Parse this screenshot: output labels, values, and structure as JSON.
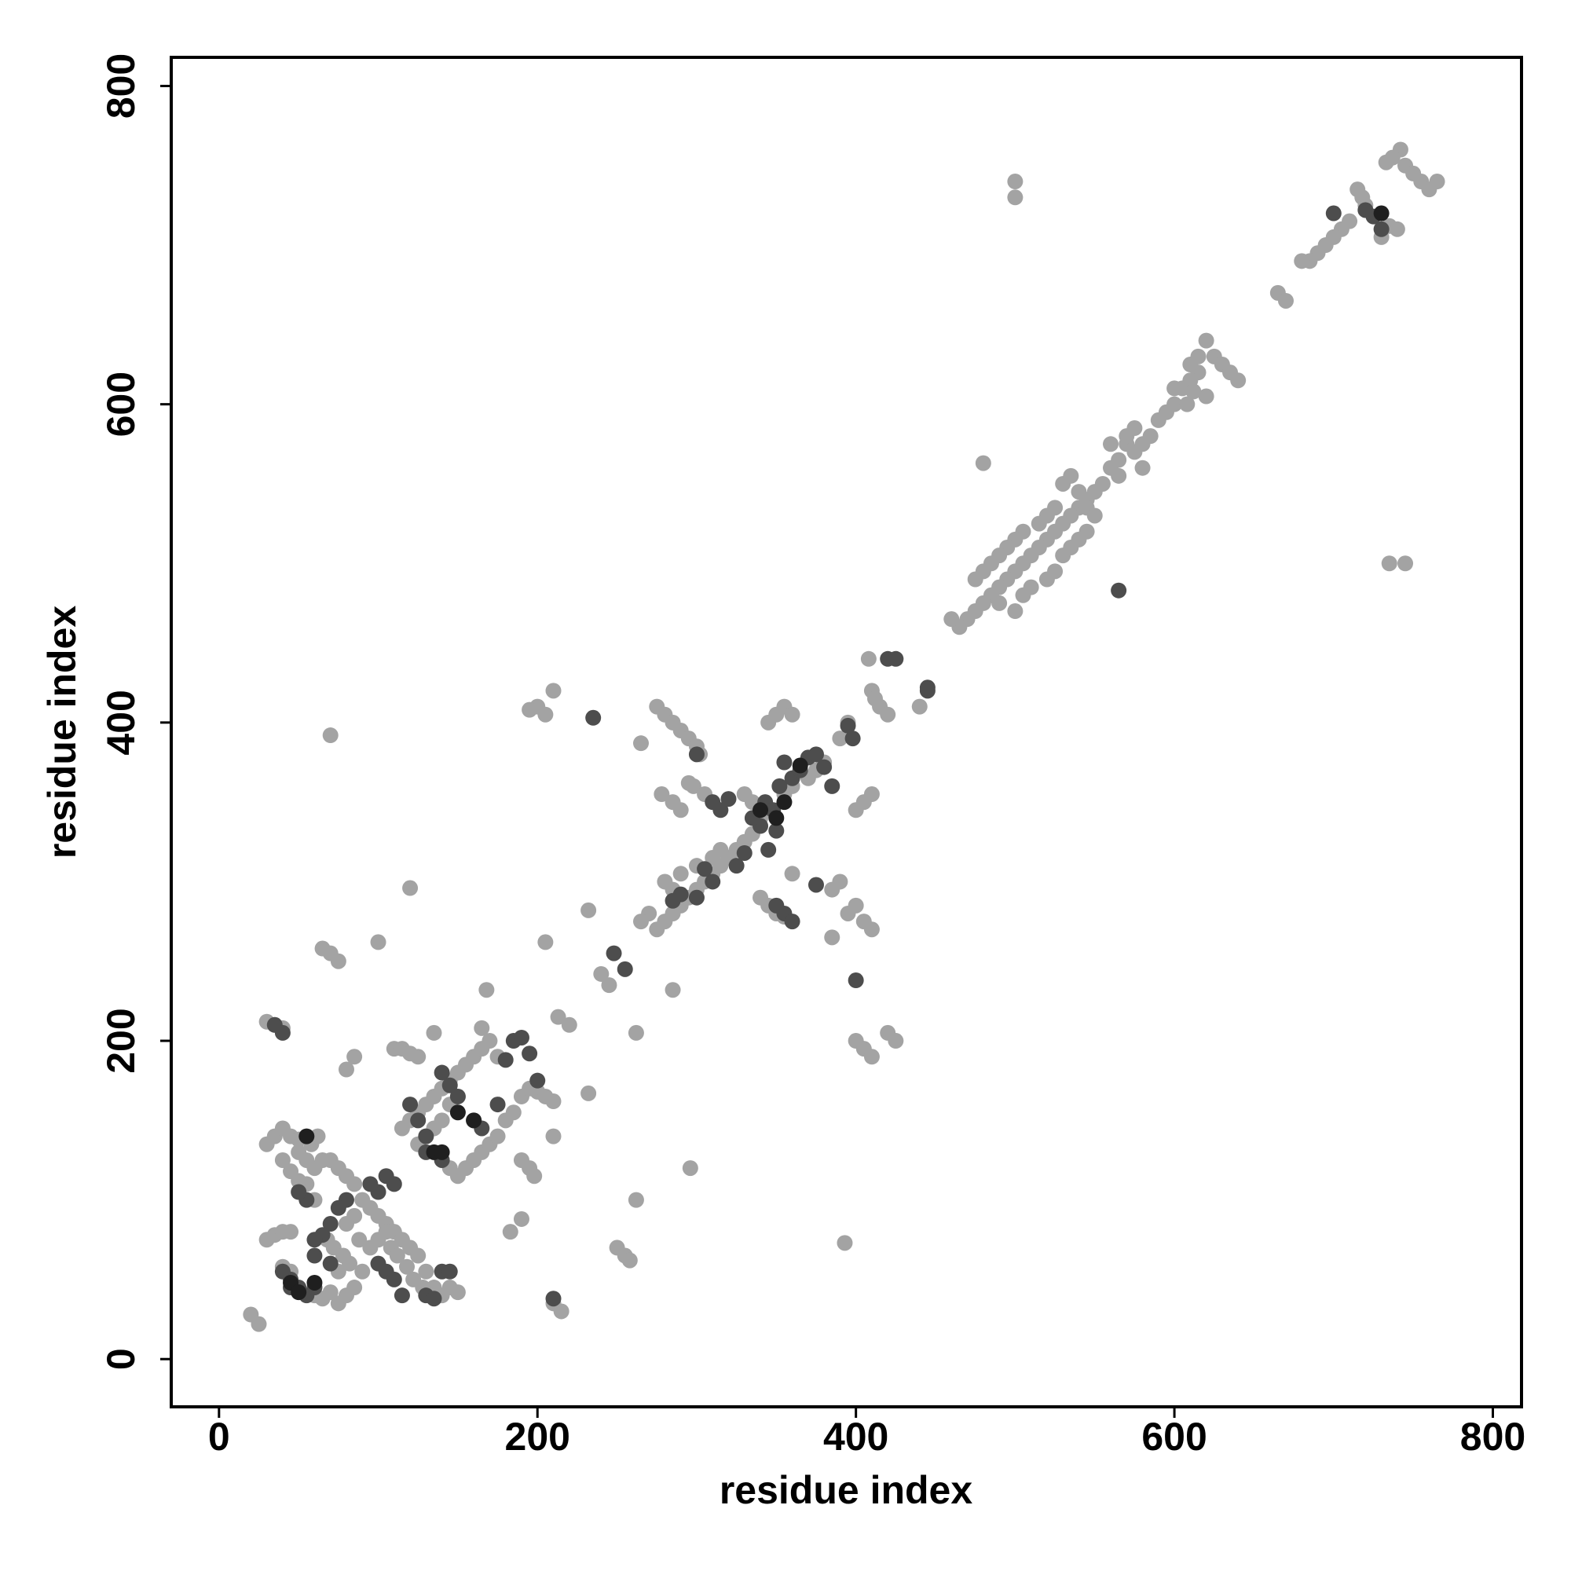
{
  "chart_data": {
    "type": "scatter",
    "xlabel": "residue index",
    "ylabel": "residue index",
    "xlim": [
      -30,
      818
    ],
    "ylim": [
      -30,
      818
    ],
    "xticks": [
      0,
      200,
      400,
      600,
      800
    ],
    "yticks": [
      0,
      200,
      400,
      600,
      800
    ],
    "grid": false,
    "series": [
      {
        "color": "#a3a3a3",
        "x": [
          742,
          737,
          733,
          745,
          750,
          755,
          760,
          765,
          740,
          735,
          730,
          720,
          718,
          715,
          710,
          705,
          700,
          695,
          690,
          685,
          680,
          665,
          670,
          500,
          500
        ],
        "values": [
          760,
          755,
          752,
          750,
          745,
          740,
          735,
          740,
          710,
          712,
          705,
          725,
          730,
          735,
          715,
          710,
          705,
          700,
          695,
          690,
          690,
          670,
          665,
          740,
          730
        ]
      },
      {
        "color": "#a3a3a3",
        "x": [
          620,
          625,
          630,
          635,
          640,
          615,
          610,
          605,
          600,
          595,
          590,
          585,
          580,
          575,
          570,
          565,
          560,
          555,
          550,
          545,
          540,
          535,
          530,
          525,
          520,
          515,
          510,
          505,
          500,
          495,
          490,
          485,
          480,
          475,
          470,
          465,
          460,
          610,
          615,
          600,
          608,
          620,
          612,
          570,
          575,
          580,
          565,
          560,
          530,
          535,
          540,
          545,
          550,
          520,
          525,
          515,
          505,
          500,
          495,
          490,
          485,
          480,
          475,
          505,
          510,
          500,
          490,
          520,
          525,
          530,
          535,
          540,
          545,
          480,
          735,
          745
        ],
        "values": [
          640,
          630,
          625,
          620,
          615,
          620,
          615,
          610,
          600,
          595,
          590,
          580,
          575,
          570,
          575,
          565,
          560,
          550,
          545,
          540,
          535,
          530,
          525,
          520,
          515,
          510,
          505,
          500,
          495,
          490,
          485,
          480,
          475,
          470,
          465,
          460,
          465,
          625,
          630,
          610,
          600,
          605,
          608,
          580,
          585,
          560,
          555,
          575,
          550,
          555,
          545,
          535,
          530,
          530,
          535,
          525,
          520,
          515,
          510,
          505,
          500,
          495,
          490,
          480,
          485,
          470,
          475,
          490,
          495,
          505,
          510,
          515,
          520,
          563,
          500,
          500
        ]
      },
      {
        "color": "#a3a3a3",
        "x": [
          408,
          410,
          412,
          415,
          420,
          440,
          395,
          390,
          380,
          375,
          370,
          360,
          355,
          345,
          340,
          335,
          330,
          325,
          320,
          315,
          310,
          305,
          300,
          295,
          290,
          285,
          280,
          275,
          270,
          265,
          275,
          280,
          285,
          290,
          295,
          345,
          350,
          355,
          360,
          300,
          302,
          400,
          405,
          410,
          395,
          400,
          405,
          410,
          385,
          390,
          385,
          360,
          340,
          335,
          330,
          278,
          285,
          290,
          298,
          305,
          310,
          315,
          300,
          290,
          285,
          280,
          340,
          345,
          350,
          355
        ],
        "values": [
          440,
          420,
          415,
          410,
          405,
          410,
          400,
          390,
          375,
          370,
          365,
          360,
          355,
          345,
          340,
          330,
          325,
          320,
          315,
          310,
          305,
          300,
          295,
          290,
          285,
          280,
          275,
          270,
          280,
          275,
          410,
          405,
          400,
          395,
          390,
          400,
          405,
          410,
          405,
          385,
          380,
          345,
          350,
          355,
          280,
          285,
          275,
          270,
          295,
          300,
          265,
          305,
          345,
          350,
          355,
          355,
          350,
          345,
          360,
          355,
          315,
          320,
          310,
          305,
          295,
          300,
          290,
          285,
          280,
          278
        ]
      },
      {
        "color": "#a3a3a3",
        "x": [
          200,
          205,
          210,
          195,
          70,
          100,
          120,
          65,
          70,
          75,
          205,
          232,
          240,
          245,
          265,
          295,
          285,
          296,
          262,
          262,
          232,
          210,
          220,
          213,
          168,
          135,
          85,
          80,
          30,
          35,
          40,
          20,
          25,
          250,
          255,
          258,
          210,
          215,
          393,
          183,
          190,
          190,
          195,
          198,
          400,
          405,
          410,
          420,
          425
        ],
        "values": [
          410,
          405,
          420,
          408,
          392,
          262,
          296,
          258,
          255,
          250,
          262,
          282,
          242,
          235,
          387,
          362,
          232,
          120,
          100,
          205,
          167,
          140,
          210,
          215,
          232,
          205,
          190,
          182,
          212,
          210,
          208,
          28,
          22,
          70,
          65,
          62,
          35,
          30,
          73,
          80,
          88,
          125,
          120,
          115,
          200,
          195,
          190,
          205,
          200
        ]
      },
      {
        "color": "#a3a3a3",
        "x": [
          30,
          35,
          40,
          45,
          50,
          55,
          60,
          65,
          70,
          75,
          80,
          85,
          90,
          95,
          100,
          105,
          110,
          115,
          120,
          125,
          130,
          135,
          140,
          145,
          150,
          30,
          35,
          40,
          45,
          75,
          80,
          85,
          75,
          110,
          115,
          120,
          125,
          115,
          120,
          125,
          130,
          135,
          140,
          145,
          150,
          155,
          160,
          165,
          145,
          150,
          155,
          160,
          165,
          170,
          175,
          180,
          185,
          190,
          195,
          200,
          205,
          210,
          140,
          145,
          150,
          125,
          130,
          135,
          170,
          175,
          165,
          68,
          72,
          78,
          82,
          90,
          100,
          105,
          108,
          112,
          118,
          122,
          128,
          85,
          80,
          88,
          95,
          60,
          55,
          50,
          45,
          40,
          50,
          58,
          62,
          40,
          45,
          60,
          65,
          70
        ],
        "values": [
          135,
          140,
          145,
          140,
          130,
          125,
          120,
          125,
          125,
          120,
          115,
          110,
          100,
          95,
          90,
          85,
          80,
          75,
          70,
          65,
          55,
          45,
          40,
          45,
          42,
          75,
          78,
          80,
          80,
          35,
          40,
          45,
          55,
          195,
          195,
          192,
          190,
          145,
          150,
          155,
          160,
          165,
          170,
          175,
          180,
          185,
          190,
          195,
          120,
          115,
          120,
          125,
          130,
          135,
          140,
          150,
          155,
          165,
          170,
          168,
          165,
          162,
          150,
          160,
          165,
          135,
          140,
          145,
          200,
          190,
          208,
          75,
          70,
          65,
          60,
          55,
          75,
          80,
          70,
          65,
          58,
          50,
          45,
          90,
          85,
          75,
          70,
          100,
          110,
          112,
          118,
          125,
          138,
          135,
          140,
          58,
          55,
          40,
          38,
          42
        ]
      },
      {
        "color": "#4d4d4d",
        "x": [
          343,
          348,
          352,
          360,
          365,
          370,
          375,
          380,
          385,
          355,
          340,
          335,
          350,
          345,
          330,
          325,
          310,
          305,
          300,
          290,
          285,
          310,
          315,
          320,
          355,
          360,
          350,
          375,
          395,
          398,
          420,
          425,
          445,
          445,
          400,
          565,
          235,
          248,
          255,
          300,
          700,
          720,
          725,
          730,
          120,
          125,
          130,
          140,
          145,
          150,
          160,
          165,
          180,
          185,
          190,
          195,
          200,
          175,
          140,
          130,
          110,
          105,
          100,
          95,
          80,
          75,
          70,
          65,
          60,
          45,
          50,
          55,
          60,
          40,
          45,
          55,
          50,
          60,
          70,
          100,
          105,
          110,
          115,
          130,
          135,
          140,
          145,
          210,
          35,
          40
        ],
        "values": [
          350,
          345,
          360,
          365,
          370,
          378,
          380,
          372,
          360,
          375,
          335,
          340,
          332,
          320,
          318,
          310,
          300,
          308,
          290,
          292,
          288,
          350,
          345,
          352,
          280,
          275,
          285,
          298,
          398,
          390,
          440,
          440,
          420,
          422,
          238,
          483,
          403,
          255,
          245,
          380,
          720,
          722,
          718,
          710,
          160,
          150,
          140,
          180,
          172,
          165,
          150,
          145,
          188,
          200,
          202,
          192,
          175,
          160,
          125,
          130,
          110,
          115,
          105,
          110,
          100,
          95,
          85,
          78,
          75,
          50,
          45,
          40,
          45,
          55,
          45,
          100,
          105,
          65,
          60,
          60,
          55,
          50,
          40,
          40,
          38,
          55,
          55,
          38,
          210,
          205
        ]
      },
      {
        "color": "#1f1f1f",
        "x": [
          365,
          355,
          350,
          340,
          730,
          150,
          160,
          135,
          55,
          45,
          60,
          50,
          140
        ],
        "values": [
          373,
          350,
          340,
          345,
          720,
          155,
          150,
          130,
          140,
          48,
          48,
          42,
          130
        ]
      }
    ]
  }
}
